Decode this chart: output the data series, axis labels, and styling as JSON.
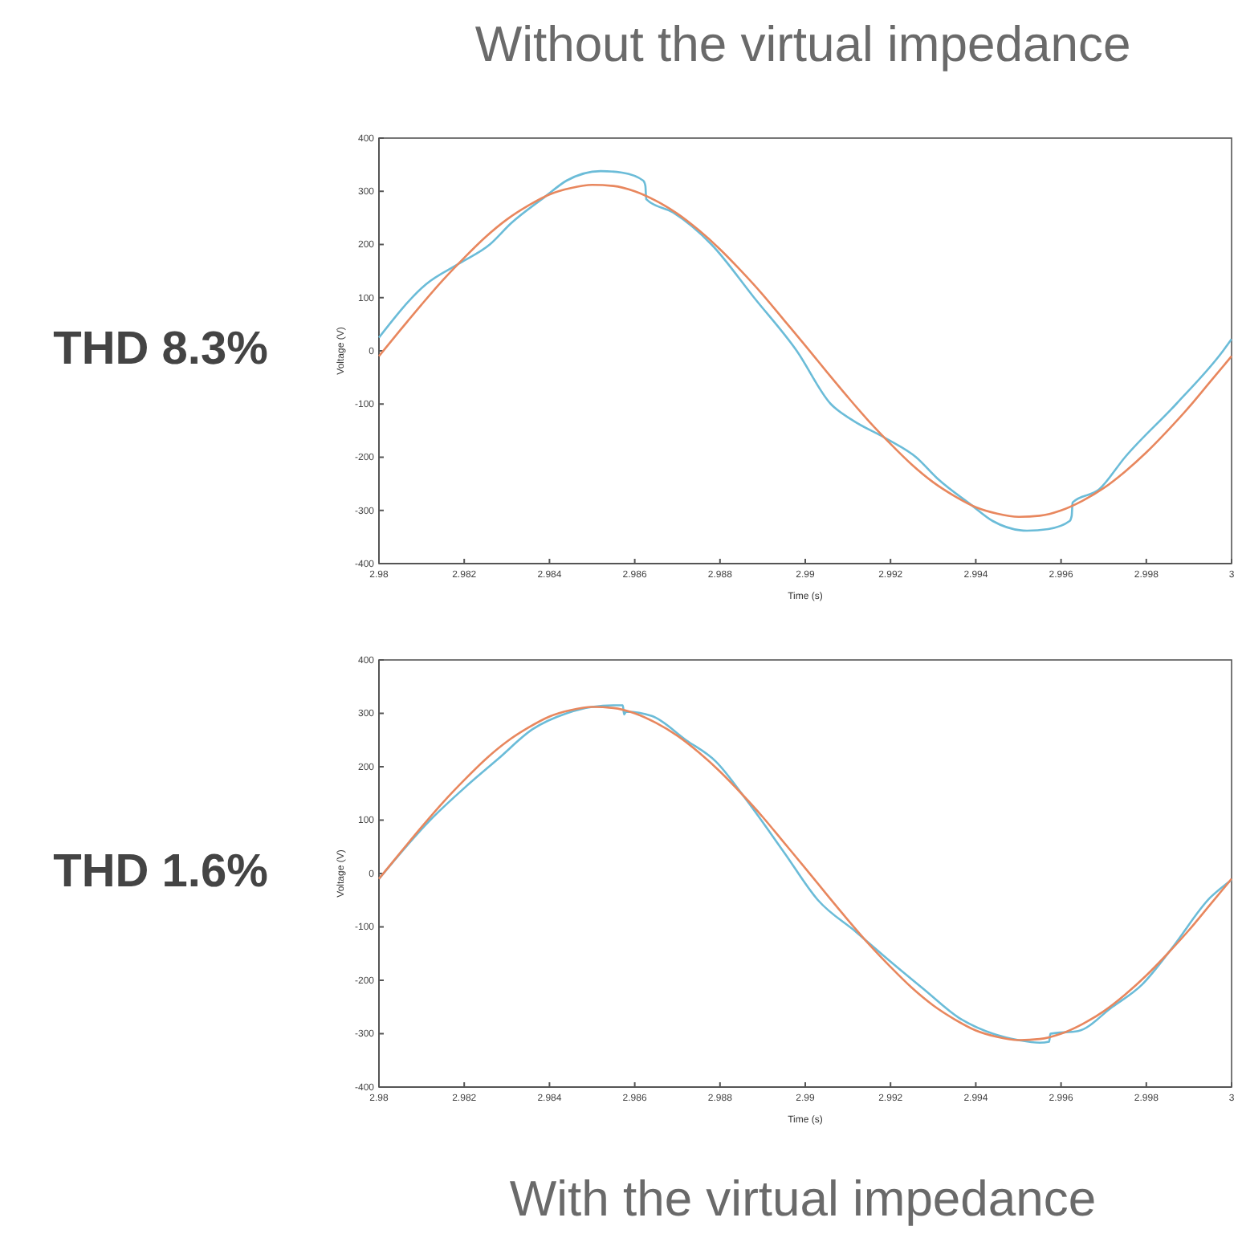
{
  "chart_data": [
    {
      "type": "line",
      "title": "Without the virtual impedance",
      "annotations": [
        "THD 8.3%"
      ],
      "xlabel": "Time (s)",
      "ylabel": "Voltage (V)",
      "xlim": [
        2.98,
        3
      ],
      "ylim": [
        -400,
        400
      ],
      "xticks": [
        2.98,
        2.982,
        2.984,
        2.986,
        2.988,
        2.99,
        2.992,
        2.994,
        2.996,
        2.998,
        3
      ],
      "yticks": [
        -400,
        -300,
        -200,
        -100,
        0,
        100,
        200,
        300,
        400
      ],
      "series": [
        {
          "color": "#6bbcd8",
          "x": [
            2.98,
            2.9811,
            2.9819,
            2.9826,
            2.9831,
            2.9839,
            2.9844,
            2.9852,
            2.9857,
            2.9862,
            2.98625,
            2.98627,
            2.9869,
            2.9878,
            2.9888,
            2.9898,
            2.9906,
            2.9911,
            2.9919,
            2.9926,
            2.9931,
            2.9939,
            2.9944,
            2.9952,
            2.9957,
            2.9962,
            2.99625,
            2.99627,
            2.9969,
            2.9975,
            2.9987,
            2.9998,
            3
          ],
          "values": [
            25,
            125,
            165,
            200,
            240,
            290,
            320,
            338,
            335,
            320,
            310,
            285,
            260,
            200,
            100,
            0,
            -100,
            -130,
            -165,
            -200,
            -240,
            -290,
            -320,
            -338,
            -335,
            -320,
            -310,
            -285,
            -260,
            -200,
            -100,
            0,
            22
          ]
        },
        {
          "color": "#e8875e",
          "x": [
            2.98,
            2.9805,
            2.981,
            2.9815,
            2.982,
            2.9825,
            2.983,
            2.9835,
            2.984,
            2.9845,
            2.985,
            2.9855,
            2.986,
            2.9865,
            2.987,
            2.9875,
            2.988,
            2.9885,
            2.989,
            2.9895,
            2.99,
            2.9905,
            2.991,
            2.9915,
            2.992,
            2.9925,
            2.993,
            2.9935,
            2.994,
            2.9945,
            2.995,
            2.9955,
            2.996,
            2.9965,
            2.997,
            2.9975,
            2.998,
            2.9985,
            2.999,
            2.9995,
            3
          ],
          "values": [
            -10,
            39,
            87,
            133,
            175,
            214,
            247,
            273,
            294,
            306,
            312,
            310,
            300,
            282,
            258,
            227,
            191,
            150,
            106,
            58,
            10,
            -39,
            -87,
            -133,
            -175,
            -214,
            -247,
            -273,
            -294,
            -306,
            -312,
            -310,
            -300,
            -282,
            -258,
            -227,
            -191,
            -150,
            -106,
            -58,
            -10
          ]
        }
      ]
    },
    {
      "type": "line",
      "title": "With the virtual impedance",
      "annotations": [
        "THD 1.6%"
      ],
      "xlabel": "Time (s)",
      "ylabel": "Voltage (V)",
      "xlim": [
        2.98,
        3
      ],
      "ylim": [
        -400,
        400
      ],
      "xticks": [
        2.98,
        2.982,
        2.984,
        2.986,
        2.988,
        2.99,
        2.992,
        2.994,
        2.996,
        2.998,
        3
      ],
      "yticks": [
        -400,
        -300,
        -200,
        -100,
        0,
        100,
        200,
        300,
        400
      ],
      "series": [
        {
          "color": "#6bbcd8",
          "x": [
            2.98,
            2.9812,
            2.982,
            2.9828,
            2.9836,
            2.9844,
            2.985,
            2.9855,
            2.98572,
            2.98575,
            2.9858,
            2.9864,
            2.9872,
            2.9879,
            2.9886,
            2.9895,
            2.9903,
            2.9912,
            2.992,
            2.9928,
            2.9936,
            2.9944,
            2.995,
            2.9955,
            2.99572,
            2.99575,
            2.9964,
            2.9972,
            2.9979,
            2.9986,
            2.9995,
            3
          ],
          "values": [
            -10,
            100,
            160,
            215,
            270,
            300,
            312,
            315,
            315,
            298,
            303,
            295,
            250,
            210,
            140,
            40,
            -50,
            -110,
            -165,
            -218,
            -270,
            -300,
            -312,
            -317,
            -315,
            -300,
            -295,
            -250,
            -208,
            -140,
            -45,
            -12
          ]
        },
        {
          "color": "#e8875e",
          "x": [
            2.98,
            2.9805,
            2.981,
            2.9815,
            2.982,
            2.9825,
            2.983,
            2.9835,
            2.984,
            2.9845,
            2.985,
            2.9855,
            2.986,
            2.9865,
            2.987,
            2.9875,
            2.988,
            2.9885,
            2.989,
            2.9895,
            2.99,
            2.9905,
            2.991,
            2.9915,
            2.992,
            2.9925,
            2.993,
            2.9935,
            2.994,
            2.9945,
            2.995,
            2.9955,
            2.996,
            2.9965,
            2.997,
            2.9975,
            2.998,
            2.9985,
            2.999,
            2.9995,
            3
          ],
          "values": [
            -10,
            39,
            87,
            133,
            175,
            214,
            247,
            273,
            294,
            306,
            312,
            310,
            300,
            282,
            258,
            227,
            191,
            150,
            106,
            58,
            10,
            -39,
            -87,
            -133,
            -175,
            -214,
            -247,
            -273,
            -294,
            -306,
            -312,
            -310,
            -300,
            -282,
            -258,
            -227,
            -191,
            -150,
            -106,
            -58,
            -10
          ]
        }
      ]
    }
  ]
}
